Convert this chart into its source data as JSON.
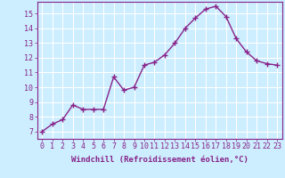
{
  "x": [
    0,
    1,
    2,
    3,
    4,
    5,
    6,
    7,
    8,
    9,
    10,
    11,
    12,
    13,
    14,
    15,
    16,
    17,
    18,
    19,
    20,
    21,
    22,
    23
  ],
  "y": [
    7.0,
    7.5,
    7.8,
    8.8,
    8.5,
    8.5,
    8.5,
    10.7,
    9.8,
    10.0,
    11.5,
    11.7,
    12.2,
    13.0,
    14.0,
    14.7,
    15.3,
    15.5,
    14.8,
    13.3,
    12.4,
    11.8,
    11.6,
    11.5
  ],
  "line_color": "#882288",
  "marker": "+",
  "markersize": 4,
  "linewidth": 1.0,
  "markeredgewidth": 1.0,
  "xlabel": "Windchill (Refroidissement éolien,°C)",
  "xlabel_fontsize": 6.5,
  "ylabel_ticks": [
    7,
    8,
    9,
    10,
    11,
    12,
    13,
    14,
    15
  ],
  "xlim": [
    -0.5,
    23.5
  ],
  "ylim": [
    6.5,
    15.8
  ],
  "background_color": "#cceeff",
  "grid_color": "#ffffff",
  "tick_color": "#882288",
  "tick_fontsize": 6.0
}
